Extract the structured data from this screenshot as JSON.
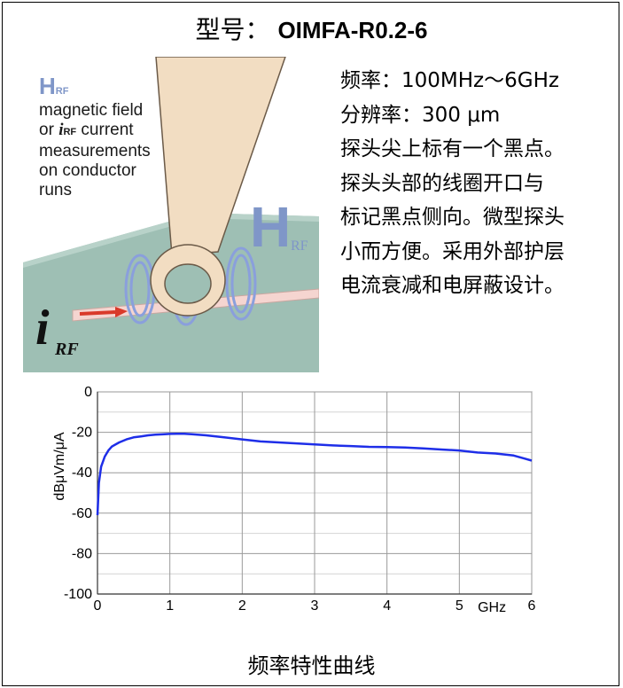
{
  "header": {
    "label": "型号：",
    "model": "OIMFA-R0.2-6"
  },
  "illustration": {
    "h_letter": "H",
    "h_sub": "RF",
    "line1": "magnetic field",
    "line2_prefix": "or ",
    "i_letter": "i",
    "i_sub": "RF",
    "line2_suffix": " current",
    "line3": "measurements",
    "line4": "on conductor",
    "line5": "runs",
    "big_h": "H",
    "big_h_sub": "RF",
    "big_i": "i",
    "big_i_sub": "RF",
    "colors": {
      "background": "#9ebfb4",
      "coil": "#8a9fdc",
      "probe": "#f2ddc2",
      "trace": "#f5d5d0",
      "arrow": "#d93a2a",
      "label_blue": "#7f96c8"
    }
  },
  "specs": [
    "频率：100MHz～6GHz",
    "分辨率：300 μm",
    "探头尖上标有一个黑点。",
    "探头头部的线圈开口与",
    "标记黑点侧向。微型探头",
    "小而方便。采用外部护层",
    "电流衰减和电屏蔽设计。"
  ],
  "chart_data": {
    "type": "line",
    "ylabel": "dBμVm/μA",
    "xlabel": "GHz",
    "xlim": [
      0,
      6
    ],
    "ylim": [
      -100,
      0
    ],
    "x_ticks": [
      "0",
      "1",
      "2",
      "3",
      "4",
      "5",
      "6"
    ],
    "y_ticks": [
      "0",
      "-20",
      "-40",
      "-60",
      "-80",
      "-100"
    ],
    "grid": true,
    "series": [
      {
        "color": "#1e2ee8",
        "x": [
          0.0,
          0.02,
          0.05,
          0.1,
          0.15,
          0.2,
          0.3,
          0.4,
          0.5,
          0.6,
          0.7,
          0.8,
          0.9,
          1.0,
          1.1,
          1.2,
          1.3,
          1.5,
          1.75,
          2.0,
          2.25,
          2.5,
          2.75,
          3.0,
          3.25,
          3.5,
          3.75,
          4.0,
          4.25,
          4.5,
          4.75,
          5.0,
          5.25,
          5.5,
          5.75,
          5.9,
          6.0
        ],
        "y": [
          -61,
          -45,
          -37,
          -32,
          -29,
          -27,
          -25,
          -23.5,
          -22.5,
          -22,
          -21.5,
          -21.2,
          -21,
          -20.8,
          -20.7,
          -20.7,
          -20.9,
          -21.5,
          -22.5,
          -23.5,
          -24.5,
          -25,
          -25.5,
          -26,
          -26.5,
          -26.8,
          -27.2,
          -27.3,
          -27.5,
          -28,
          -28.5,
          -29,
          -30,
          -30.5,
          -31.5,
          -33,
          -34
        ]
      }
    ]
  },
  "caption": "频率特性曲线"
}
